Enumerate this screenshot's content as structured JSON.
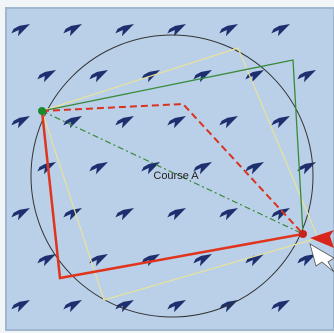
{
  "label": "Course A"
}
